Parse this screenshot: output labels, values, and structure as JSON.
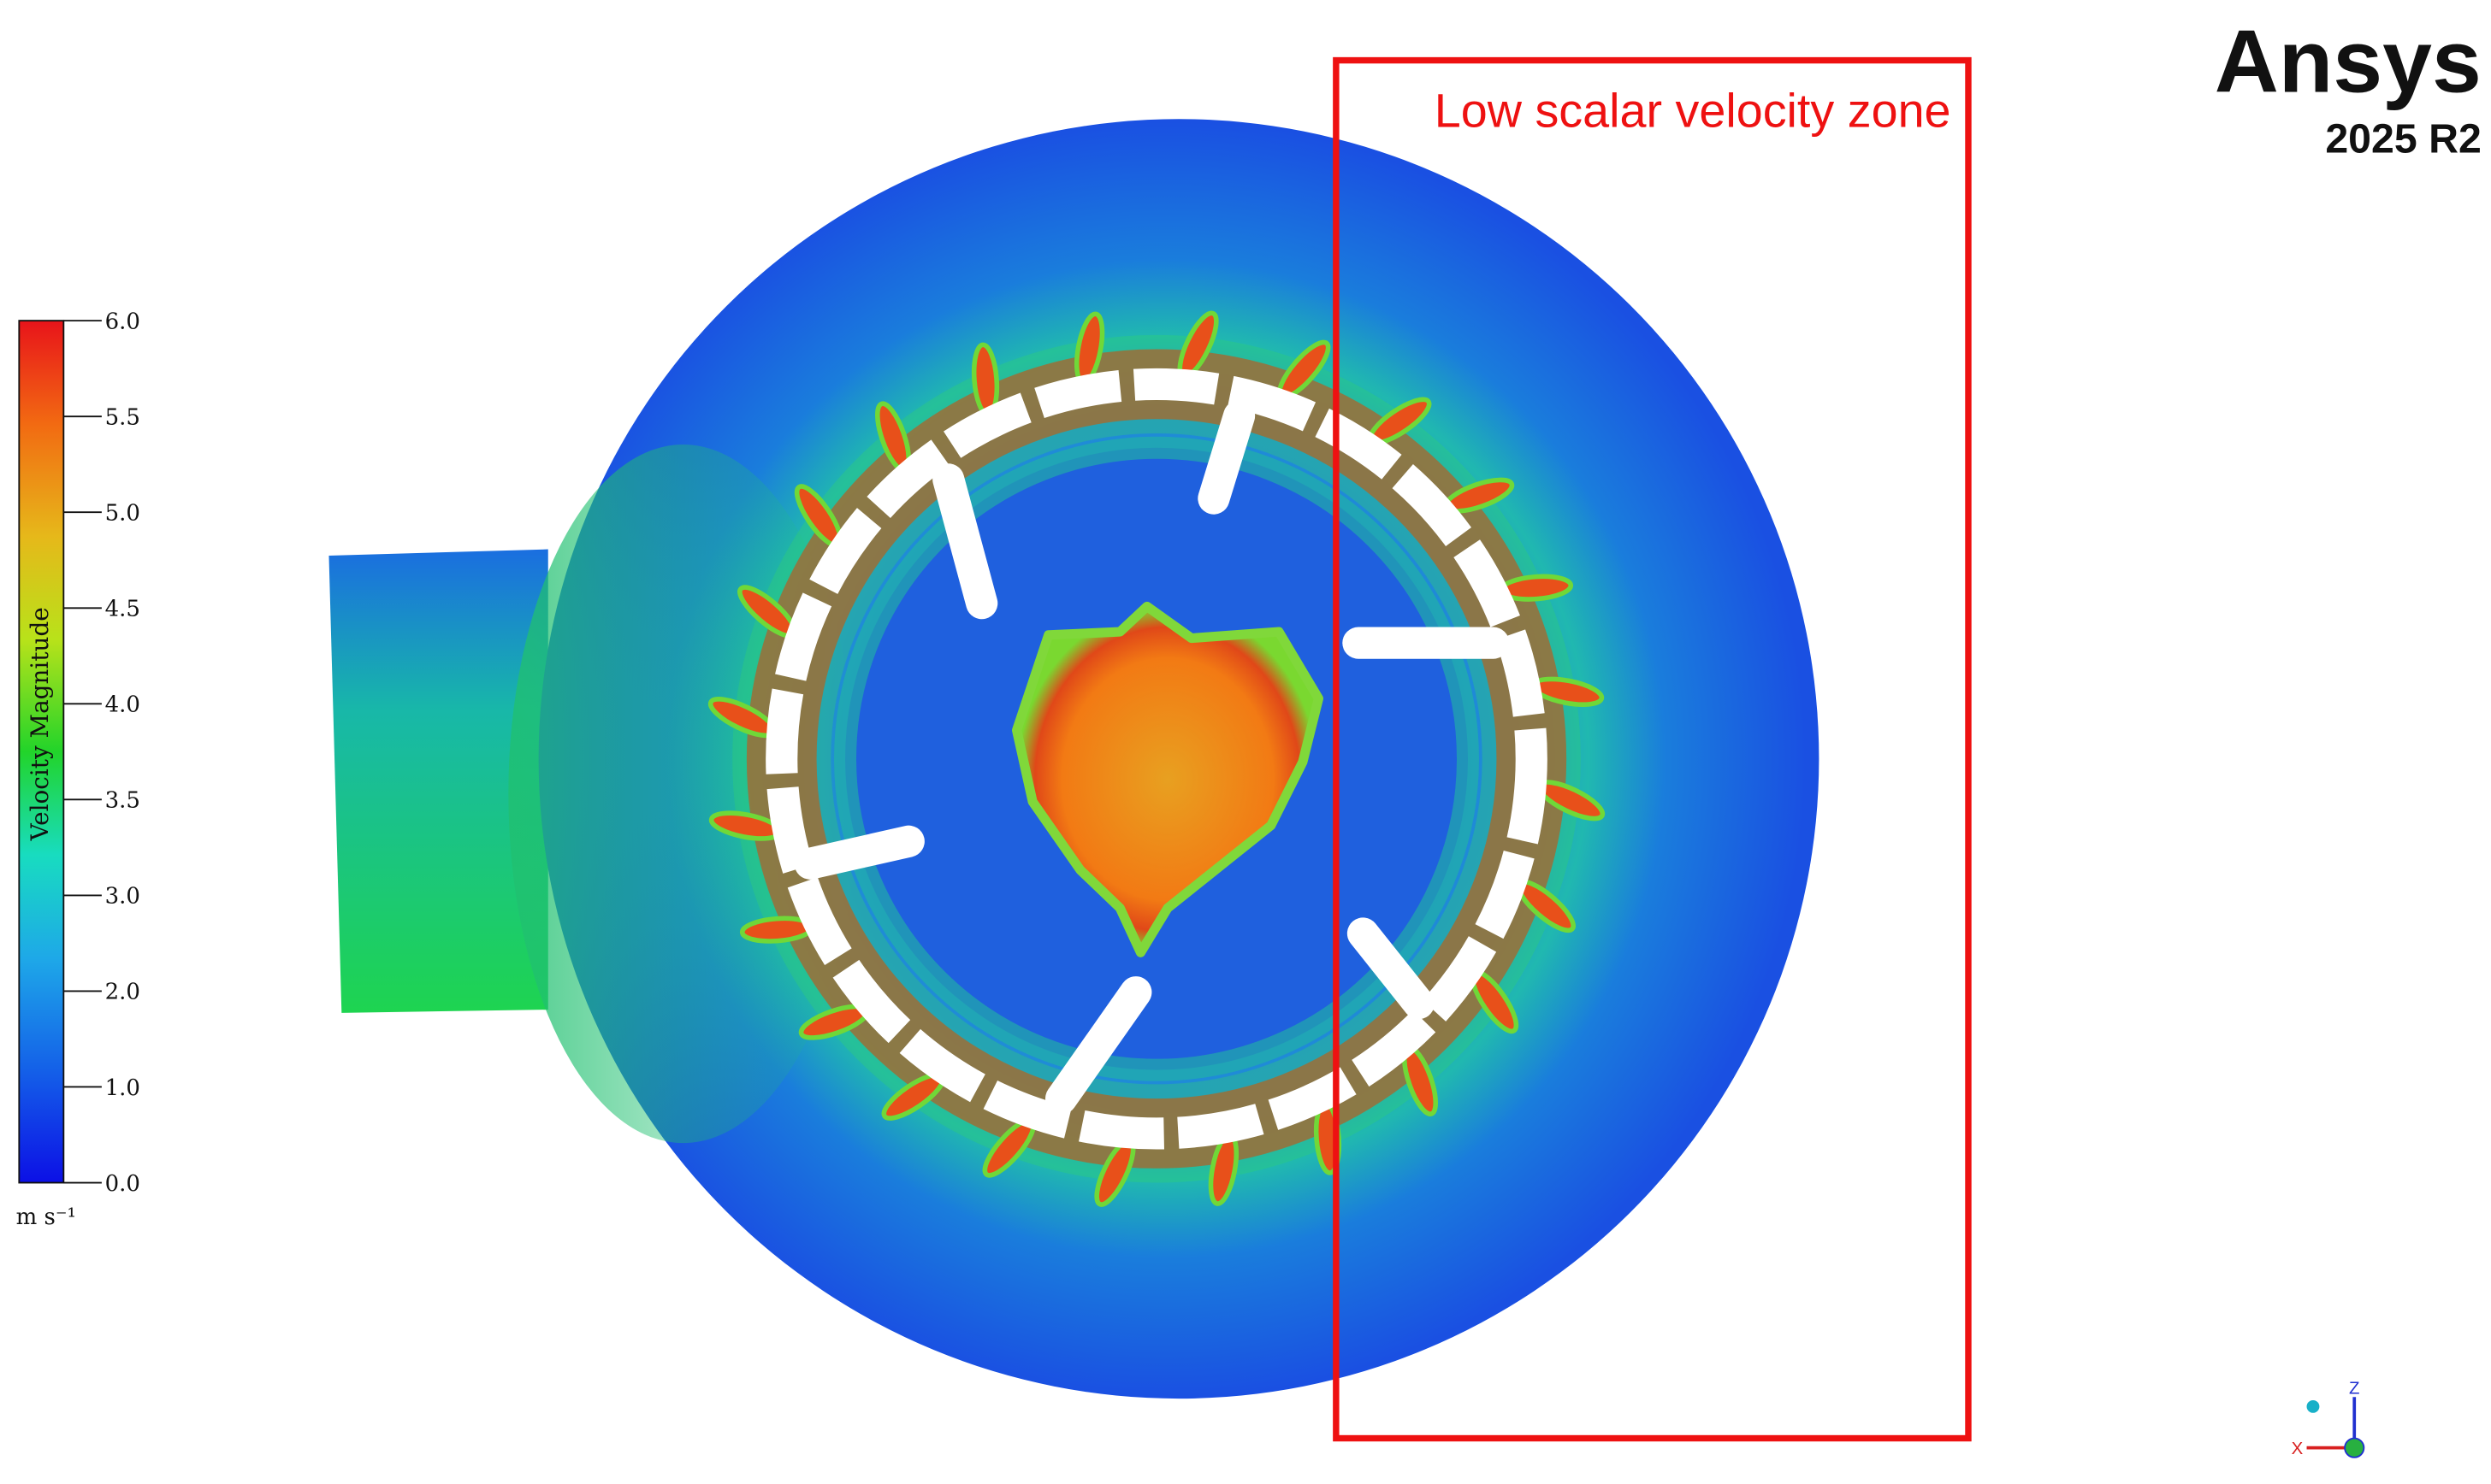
{
  "logo": {
    "brand": "Ansys",
    "version": "2025 R2"
  },
  "annotation": "Low scalar velocity zone",
  "colorbar": {
    "title": "Velocity Magnitude",
    "unit": "m s⁻¹",
    "ticks": [
      {
        "value": 6,
        "label": "6.0"
      },
      {
        "value": 5.5,
        "label": "5.5"
      },
      {
        "value": 5,
        "label": "5.0"
      },
      {
        "value": 4.5,
        "label": "4.5"
      },
      {
        "value": 4,
        "label": "4.0"
      },
      {
        "value": 3.5,
        "label": "3.5"
      },
      {
        "value": 3,
        "label": "3.0"
      },
      {
        "value": 2,
        "label": "2.0"
      },
      {
        "value": 1,
        "label": "1.0"
      },
      {
        "value": 0,
        "label": "0.0"
      }
    ]
  },
  "triad": {
    "z": "Z",
    "x": "X"
  }
}
